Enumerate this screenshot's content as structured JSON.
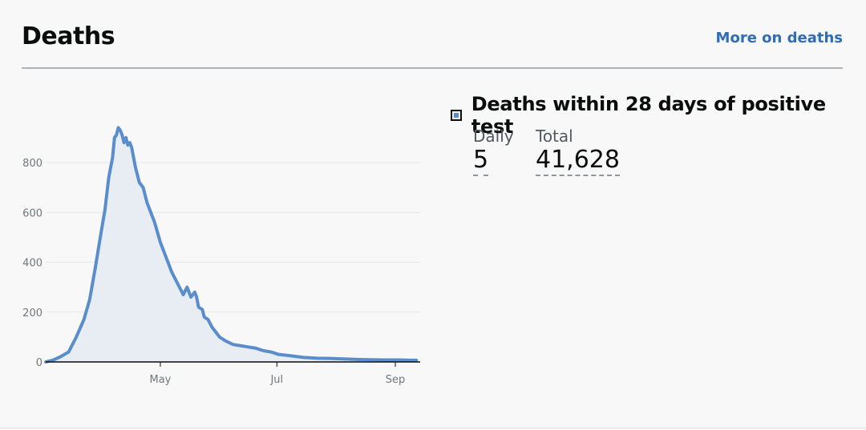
{
  "header": {
    "title": "Deaths",
    "more_link": "More on deaths"
  },
  "metric": {
    "name": "Deaths within 28 days of positive test",
    "color": "#5a8dcc",
    "daily_label": "Daily",
    "daily_value": "5",
    "total_label": "Total",
    "total_value": "41,628"
  },
  "chart_data": {
    "type": "area",
    "title": "",
    "xlabel": "",
    "ylabel": "",
    "x_axis": {
      "type": "time",
      "tick_labels": [
        "May",
        "Jul",
        "Sep"
      ],
      "ticks": [
        "2020-05-01",
        "2020-07-01",
        "2020-09-01"
      ]
    },
    "ylim": [
      0,
      1000
    ],
    "yticks": [
      0,
      200,
      400,
      600,
      800
    ],
    "grid": true,
    "series": [
      {
        "color": "#5a8dcc",
        "fill": "#e8edf3",
        "x": [
          "2020-03-02",
          "2020-03-06",
          "2020-03-10",
          "2020-03-14",
          "2020-03-18",
          "2020-03-22",
          "2020-03-25",
          "2020-03-28",
          "2020-03-31",
          "2020-04-02",
          "2020-04-04",
          "2020-04-06",
          "2020-04-07",
          "2020-04-08",
          "2020-04-09",
          "2020-04-10",
          "2020-04-11",
          "2020-04-12",
          "2020-04-13",
          "2020-04-14",
          "2020-04-15",
          "2020-04-16",
          "2020-04-17",
          "2020-04-18",
          "2020-04-20",
          "2020-04-22",
          "2020-04-24",
          "2020-04-26",
          "2020-04-28",
          "2020-05-01",
          "2020-05-03",
          "2020-05-05",
          "2020-05-07",
          "2020-05-09",
          "2020-05-11",
          "2020-05-13",
          "2020-05-15",
          "2020-05-17",
          "2020-05-19",
          "2020-05-20",
          "2020-05-21",
          "2020-05-23",
          "2020-05-24",
          "2020-05-26",
          "2020-05-28",
          "2020-05-30",
          "2020-06-01",
          "2020-06-04",
          "2020-06-08",
          "2020-06-12",
          "2020-06-16",
          "2020-06-20",
          "2020-06-24",
          "2020-06-28",
          "2020-07-02",
          "2020-07-08",
          "2020-07-15",
          "2020-07-22",
          "2020-07-29",
          "2020-08-05",
          "2020-08-12",
          "2020-08-19",
          "2020-08-26",
          "2020-09-02",
          "2020-09-08",
          "2020-09-12"
        ],
        "values": [
          0,
          8,
          22,
          40,
          100,
          170,
          250,
          380,
          520,
          610,
          740,
          820,
          900,
          910,
          940,
          930,
          910,
          880,
          900,
          870,
          880,
          860,
          820,
          780,
          720,
          700,
          640,
          600,
          560,
          480,
          440,
          400,
          360,
          330,
          300,
          270,
          300,
          260,
          280,
          260,
          220,
          210,
          180,
          170,
          140,
          120,
          100,
          85,
          70,
          65,
          60,
          55,
          45,
          40,
          30,
          25,
          18,
          15,
          14,
          12,
          10,
          9,
          8,
          8,
          7,
          7
        ]
      }
    ]
  }
}
